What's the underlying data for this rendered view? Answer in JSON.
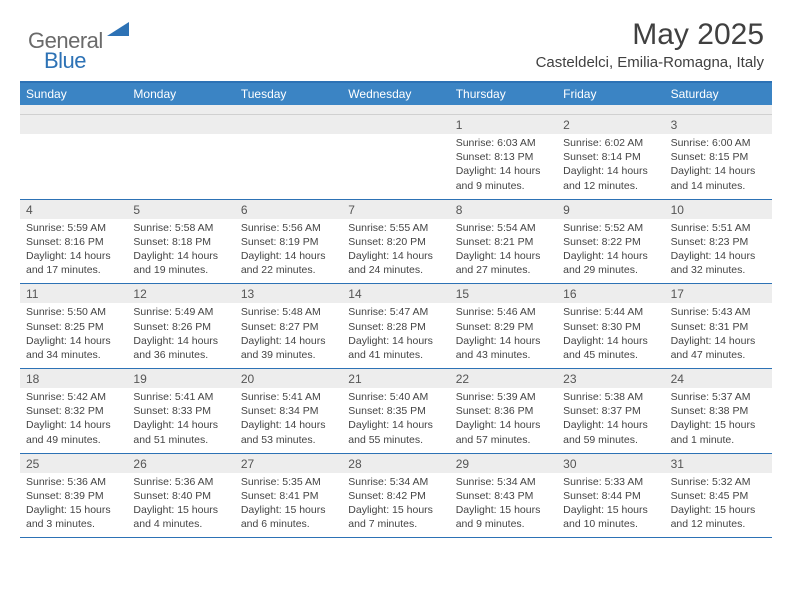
{
  "logo": {
    "text1": "General",
    "text2": "Blue"
  },
  "title": "May 2025",
  "location": "Casteldelci, Emilia-Romagna, Italy",
  "header_bg": "#3b84c4",
  "accent": "#2d72b5",
  "weekdays": [
    "Sunday",
    "Monday",
    "Tuesday",
    "Wednesday",
    "Thursday",
    "Friday",
    "Saturday"
  ],
  "weeks": [
    [
      {
        "n": "",
        "sr": "",
        "ss": "",
        "dl": ""
      },
      {
        "n": "",
        "sr": "",
        "ss": "",
        "dl": ""
      },
      {
        "n": "",
        "sr": "",
        "ss": "",
        "dl": ""
      },
      {
        "n": "",
        "sr": "",
        "ss": "",
        "dl": ""
      },
      {
        "n": "1",
        "sr": "Sunrise: 6:03 AM",
        "ss": "Sunset: 8:13 PM",
        "dl": "Daylight: 14 hours and 9 minutes."
      },
      {
        "n": "2",
        "sr": "Sunrise: 6:02 AM",
        "ss": "Sunset: 8:14 PM",
        "dl": "Daylight: 14 hours and 12 minutes."
      },
      {
        "n": "3",
        "sr": "Sunrise: 6:00 AM",
        "ss": "Sunset: 8:15 PM",
        "dl": "Daylight: 14 hours and 14 minutes."
      }
    ],
    [
      {
        "n": "4",
        "sr": "Sunrise: 5:59 AM",
        "ss": "Sunset: 8:16 PM",
        "dl": "Daylight: 14 hours and 17 minutes."
      },
      {
        "n": "5",
        "sr": "Sunrise: 5:58 AM",
        "ss": "Sunset: 8:18 PM",
        "dl": "Daylight: 14 hours and 19 minutes."
      },
      {
        "n": "6",
        "sr": "Sunrise: 5:56 AM",
        "ss": "Sunset: 8:19 PM",
        "dl": "Daylight: 14 hours and 22 minutes."
      },
      {
        "n": "7",
        "sr": "Sunrise: 5:55 AM",
        "ss": "Sunset: 8:20 PM",
        "dl": "Daylight: 14 hours and 24 minutes."
      },
      {
        "n": "8",
        "sr": "Sunrise: 5:54 AM",
        "ss": "Sunset: 8:21 PM",
        "dl": "Daylight: 14 hours and 27 minutes."
      },
      {
        "n": "9",
        "sr": "Sunrise: 5:52 AM",
        "ss": "Sunset: 8:22 PM",
        "dl": "Daylight: 14 hours and 29 minutes."
      },
      {
        "n": "10",
        "sr": "Sunrise: 5:51 AM",
        "ss": "Sunset: 8:23 PM",
        "dl": "Daylight: 14 hours and 32 minutes."
      }
    ],
    [
      {
        "n": "11",
        "sr": "Sunrise: 5:50 AM",
        "ss": "Sunset: 8:25 PM",
        "dl": "Daylight: 14 hours and 34 minutes."
      },
      {
        "n": "12",
        "sr": "Sunrise: 5:49 AM",
        "ss": "Sunset: 8:26 PM",
        "dl": "Daylight: 14 hours and 36 minutes."
      },
      {
        "n": "13",
        "sr": "Sunrise: 5:48 AM",
        "ss": "Sunset: 8:27 PM",
        "dl": "Daylight: 14 hours and 39 minutes."
      },
      {
        "n": "14",
        "sr": "Sunrise: 5:47 AM",
        "ss": "Sunset: 8:28 PM",
        "dl": "Daylight: 14 hours and 41 minutes."
      },
      {
        "n": "15",
        "sr": "Sunrise: 5:46 AM",
        "ss": "Sunset: 8:29 PM",
        "dl": "Daylight: 14 hours and 43 minutes."
      },
      {
        "n": "16",
        "sr": "Sunrise: 5:44 AM",
        "ss": "Sunset: 8:30 PM",
        "dl": "Daylight: 14 hours and 45 minutes."
      },
      {
        "n": "17",
        "sr": "Sunrise: 5:43 AM",
        "ss": "Sunset: 8:31 PM",
        "dl": "Daylight: 14 hours and 47 minutes."
      }
    ],
    [
      {
        "n": "18",
        "sr": "Sunrise: 5:42 AM",
        "ss": "Sunset: 8:32 PM",
        "dl": "Daylight: 14 hours and 49 minutes."
      },
      {
        "n": "19",
        "sr": "Sunrise: 5:41 AM",
        "ss": "Sunset: 8:33 PM",
        "dl": "Daylight: 14 hours and 51 minutes."
      },
      {
        "n": "20",
        "sr": "Sunrise: 5:41 AM",
        "ss": "Sunset: 8:34 PM",
        "dl": "Daylight: 14 hours and 53 minutes."
      },
      {
        "n": "21",
        "sr": "Sunrise: 5:40 AM",
        "ss": "Sunset: 8:35 PM",
        "dl": "Daylight: 14 hours and 55 minutes."
      },
      {
        "n": "22",
        "sr": "Sunrise: 5:39 AM",
        "ss": "Sunset: 8:36 PM",
        "dl": "Daylight: 14 hours and 57 minutes."
      },
      {
        "n": "23",
        "sr": "Sunrise: 5:38 AM",
        "ss": "Sunset: 8:37 PM",
        "dl": "Daylight: 14 hours and 59 minutes."
      },
      {
        "n": "24",
        "sr": "Sunrise: 5:37 AM",
        "ss": "Sunset: 8:38 PM",
        "dl": "Daylight: 15 hours and 1 minute."
      }
    ],
    [
      {
        "n": "25",
        "sr": "Sunrise: 5:36 AM",
        "ss": "Sunset: 8:39 PM",
        "dl": "Daylight: 15 hours and 3 minutes."
      },
      {
        "n": "26",
        "sr": "Sunrise: 5:36 AM",
        "ss": "Sunset: 8:40 PM",
        "dl": "Daylight: 15 hours and 4 minutes."
      },
      {
        "n": "27",
        "sr": "Sunrise: 5:35 AM",
        "ss": "Sunset: 8:41 PM",
        "dl": "Daylight: 15 hours and 6 minutes."
      },
      {
        "n": "28",
        "sr": "Sunrise: 5:34 AM",
        "ss": "Sunset: 8:42 PM",
        "dl": "Daylight: 15 hours and 7 minutes."
      },
      {
        "n": "29",
        "sr": "Sunrise: 5:34 AM",
        "ss": "Sunset: 8:43 PM",
        "dl": "Daylight: 15 hours and 9 minutes."
      },
      {
        "n": "30",
        "sr": "Sunrise: 5:33 AM",
        "ss": "Sunset: 8:44 PM",
        "dl": "Daylight: 15 hours and 10 minutes."
      },
      {
        "n": "31",
        "sr": "Sunrise: 5:32 AM",
        "ss": "Sunset: 8:45 PM",
        "dl": "Daylight: 15 hours and 12 minutes."
      }
    ]
  ]
}
